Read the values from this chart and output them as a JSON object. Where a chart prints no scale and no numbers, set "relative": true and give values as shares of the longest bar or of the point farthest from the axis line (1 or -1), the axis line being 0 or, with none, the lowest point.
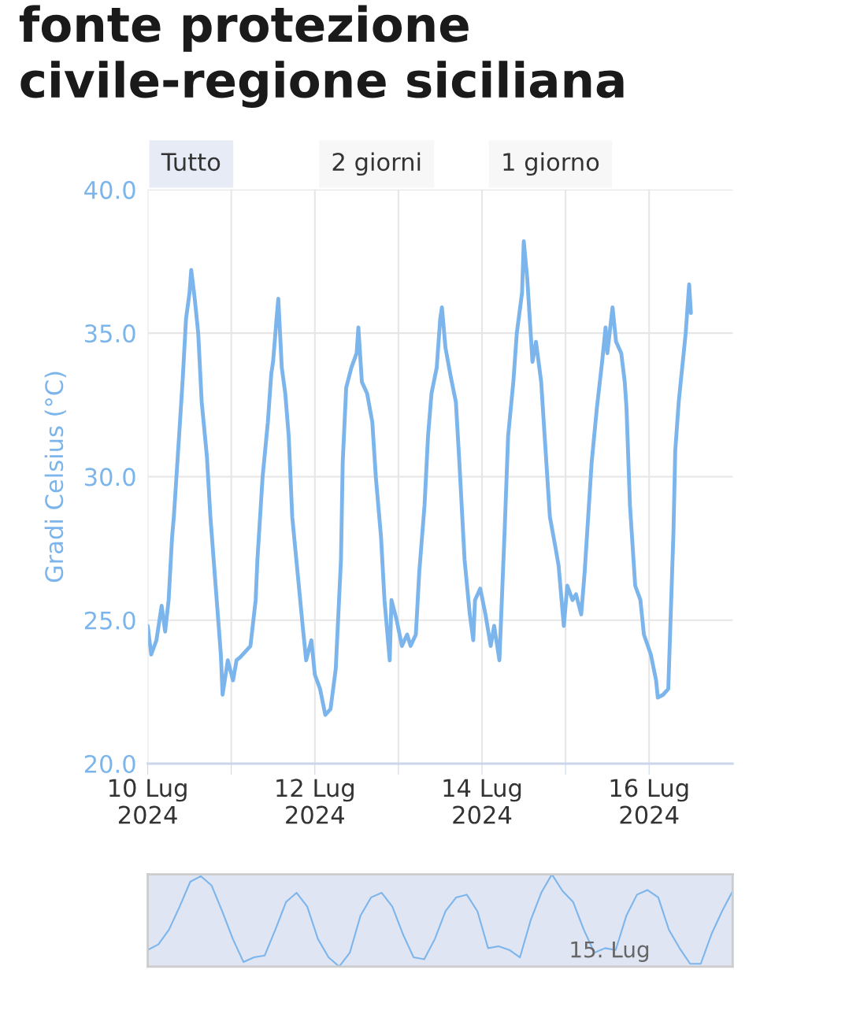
{
  "chart_data": [
    {
      "type": "line",
      "ylabel": "Gradi Celsius (°C)",
      "annotations": [
        "fonte protezione\ncivile-regione siciliana",
        "Tutto",
        "2 giorni",
        "1 giorno"
      ],
      "xlim": [
        "2024-07-10",
        "2024-07-17"
      ],
      "xticks": [
        {
          "value": "2024-07-10",
          "label": "10 Lug\n2024"
        },
        {
          "value": "2024-07-11",
          "label": null
        },
        {
          "value": "2024-07-12",
          "label": "12 Lug\n2024"
        },
        {
          "value": "2024-07-13",
          "label": null
        },
        {
          "value": "2024-07-14",
          "label": "14 Lug\n2024"
        },
        {
          "value": "2024-07-15",
          "label": null
        },
        {
          "value": "2024-07-16",
          "label": "16 Lug\n2024"
        }
      ],
      "ylim": [
        20,
        40
      ],
      "yticks": [
        {
          "value": 20,
          "label": "20.0"
        },
        {
          "value": 25,
          "label": "25.0"
        },
        {
          "value": 30,
          "label": "30.0"
        },
        {
          "value": 35,
          "label": "35.0"
        },
        {
          "value": 40,
          "label": "40.0"
        }
      ],
      "grid": true,
      "series": [
        {
          "color": "#7cb5ec",
          "x": [
            "2024-07-10T00:00",
            "2024-07-10T01:00",
            "2024-07-10T02:30",
            "2024-07-10T04:00",
            "2024-07-10T05:00",
            "2024-07-10T06:00",
            "2024-07-10T07:00",
            "2024-07-10T07:30",
            "2024-07-10T09:00",
            "2024-07-10T10:00",
            "2024-07-10T11:00",
            "2024-07-10T12:00",
            "2024-07-10T12:30",
            "2024-07-10T13:30",
            "2024-07-10T14:30",
            "2024-07-10T15:30",
            "2024-07-10T17:00",
            "2024-07-10T18:00",
            "2024-07-10T19:30",
            "2024-07-10T21:00",
            "2024-07-10T21:30",
            "2024-07-10T23:00",
            "2024-07-11T00:30",
            "2024-07-11T01:30",
            "2024-07-11T02:30",
            "2024-07-11T04:00",
            "2024-07-11T05:30",
            "2024-07-11T07:00",
            "2024-07-11T07:30",
            "2024-07-11T09:00",
            "2024-07-11T10:30",
            "2024-07-11T11:30",
            "2024-07-11T12:00",
            "2024-07-11T13:00",
            "2024-07-11T13:30",
            "2024-07-11T14:30",
            "2024-07-11T15:30",
            "2024-07-11T16:30",
            "2024-07-11T17:30",
            "2024-07-11T19:00",
            "2024-07-11T20:30",
            "2024-07-11T21:30",
            "2024-07-11T23:00",
            "2024-07-12T00:00",
            "2024-07-12T01:30",
            "2024-07-12T03:00",
            "2024-07-12T04:30",
            "2024-07-12T06:00",
            "2024-07-12T07:30",
            "2024-07-12T08:00",
            "2024-07-12T09:00",
            "2024-07-12T10:30",
            "2024-07-12T12:00",
            "2024-07-12T12:30",
            "2024-07-12T13:30",
            "2024-07-12T15:00",
            "2024-07-12T16:30",
            "2024-07-12T17:30",
            "2024-07-12T19:00",
            "2024-07-12T20:00",
            "2024-07-12T21:30",
            "2024-07-12T22:00",
            "2024-07-12T23:30",
            "2024-07-13T01:00",
            "2024-07-13T02:30",
            "2024-07-13T03:30",
            "2024-07-13T05:00",
            "2024-07-13T06:00",
            "2024-07-13T07:30",
            "2024-07-13T08:30",
            "2024-07-13T09:30",
            "2024-07-13T11:00",
            "2024-07-13T12:00",
            "2024-07-13T12:30",
            "2024-07-13T13:30",
            "2024-07-13T15:00",
            "2024-07-13T16:30",
            "2024-07-13T17:30",
            "2024-07-13T19:00",
            "2024-07-13T20:30",
            "2024-07-13T21:30",
            "2024-07-13T22:00",
            "2024-07-13T23:30",
            "2024-07-14T01:00",
            "2024-07-14T02:30",
            "2024-07-14T03:30",
            "2024-07-14T05:00",
            "2024-07-14T06:30",
            "2024-07-14T07:30",
            "2024-07-14T09:00",
            "2024-07-14T10:00",
            "2024-07-14T11:30",
            "2024-07-14T12:00",
            "2024-07-14T13:00",
            "2024-07-14T14:30",
            "2024-07-14T15:30",
            "2024-07-14T17:00",
            "2024-07-14T18:00",
            "2024-07-14T19:30",
            "2024-07-14T21:00",
            "2024-07-14T22:00",
            "2024-07-14T23:30",
            "2024-07-15T00:30",
            "2024-07-15T02:00",
            "2024-07-15T03:00",
            "2024-07-15T04:30",
            "2024-07-15T05:30",
            "2024-07-15T06:30",
            "2024-07-15T07:30",
            "2024-07-15T09:00",
            "2024-07-15T10:30",
            "2024-07-15T11:30",
            "2024-07-15T12:00",
            "2024-07-15T13:30",
            "2024-07-15T14:30",
            "2024-07-15T16:00",
            "2024-07-15T17:00",
            "2024-07-15T17:30",
            "2024-07-15T18:30",
            "2024-07-15T20:00",
            "2024-07-15T21:30",
            "2024-07-15T22:30",
            "2024-07-16T00:30",
            "2024-07-16T02:00",
            "2024-07-16T02:30",
            "2024-07-16T04:00",
            "2024-07-16T05:30",
            "2024-07-16T07:00",
            "2024-07-16T07:30",
            "2024-07-16T08:30",
            "2024-07-16T09:30",
            "2024-07-16T10:30",
            "2024-07-16T11:30",
            "2024-07-16T12:00"
          ],
          "values": [
            24.8,
            23.8,
            24.3,
            25.5,
            24.6,
            25.7,
            27.9,
            28.6,
            31.4,
            33.3,
            35.5,
            36.4,
            37.2,
            36.2,
            35.0,
            32.6,
            30.7,
            28.6,
            26.2,
            23.8,
            22.4,
            23.6,
            22.9,
            23.6,
            23.7,
            23.9,
            24.1,
            25.7,
            27.1,
            30.0,
            31.9,
            33.6,
            34.0,
            35.5,
            36.2,
            33.8,
            32.9,
            31.4,
            28.6,
            26.7,
            24.8,
            23.6,
            24.3,
            23.1,
            22.6,
            21.7,
            21.9,
            23.3,
            27.1,
            30.5,
            33.1,
            33.8,
            34.3,
            35.2,
            33.3,
            32.9,
            31.9,
            30.0,
            27.9,
            25.7,
            23.6,
            25.7,
            25.0,
            24.1,
            24.5,
            24.1,
            24.5,
            26.7,
            29.0,
            31.4,
            32.9,
            33.8,
            35.5,
            35.9,
            34.5,
            33.5,
            32.6,
            30.5,
            27.1,
            25.2,
            24.3,
            25.7,
            26.1,
            25.2,
            24.1,
            24.8,
            23.6,
            28.1,
            31.4,
            33.3,
            35.0,
            36.4,
            38.2,
            36.9,
            34.0,
            34.7,
            33.3,
            31.4,
            28.6,
            27.6,
            26.9,
            24.8,
            26.2,
            25.7,
            25.9,
            25.2,
            26.7,
            28.6,
            30.5,
            32.4,
            34.0,
            35.2,
            34.3,
            35.9,
            34.7,
            34.3,
            33.3,
            32.4,
            29.0,
            26.2,
            25.7,
            24.5,
            23.8,
            22.9,
            22.3,
            22.4,
            22.6,
            28.1,
            30.9,
            32.6,
            33.8,
            35.0,
            36.7,
            35.7
          ]
        }
      ]
    },
    {
      "type": "line",
      "relative": true,
      "annotations": [
        "15. Lug"
      ],
      "categories": [
        null,
        null,
        null,
        null,
        null,
        null,
        null,
        null,
        null,
        null,
        null,
        null,
        null,
        null,
        null,
        null,
        null,
        null,
        null,
        null,
        null,
        null,
        null,
        null,
        null,
        null,
        null,
        null,
        null,
        null,
        null,
        null,
        null,
        null,
        null,
        null,
        null,
        null,
        null,
        null,
        null,
        null,
        null,
        null,
        null,
        null,
        null,
        null,
        null,
        null,
        null,
        null,
        null,
        null,
        null,
        null
      ],
      "series": [
        {
          "color": "#7cb5ec",
          "values": [
            0.18,
            0.24,
            0.4,
            0.65,
            0.92,
            0.98,
            0.88,
            0.6,
            0.3,
            0.05,
            0.1,
            0.12,
            0.4,
            0.7,
            0.8,
            0.65,
            0.3,
            0.1,
            0,
            0.15,
            0.55,
            0.75,
            0.8,
            0.65,
            0.35,
            0.1,
            0.08,
            0.3,
            0.6,
            0.75,
            0.78,
            0.6,
            0.2,
            0.22,
            0.18,
            0.1,
            0.5,
            0.8,
            1,
            0.82,
            0.7,
            0.4,
            0.15,
            0.2,
            0.18,
            0.55,
            0.78,
            0.83,
            0.75,
            0.4,
            0.2,
            0.03,
            0.03,
            0.35,
            0.6,
            0.82
          ]
        }
      ]
    }
  ]
}
